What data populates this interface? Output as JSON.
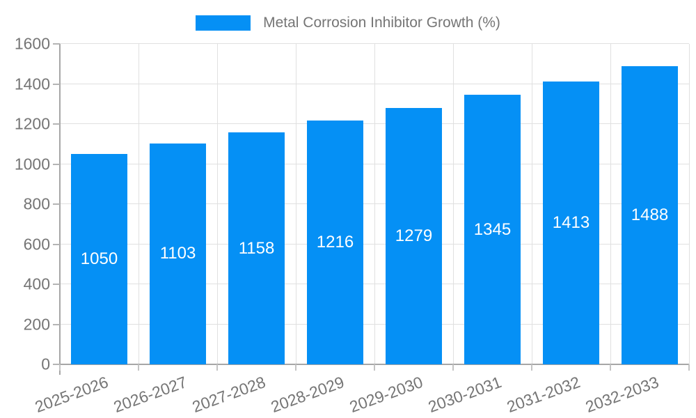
{
  "legend": {
    "label": "Metal Corrosion Inhibitor Growth (%)"
  },
  "chart_data": {
    "type": "bar",
    "title": "Metal Corrosion Inhibitor Growth (%)",
    "series_name": "Metal Corrosion Inhibitor Growth (%)",
    "categories": [
      "2025-2026",
      "2026-2027",
      "2027-2028",
      "2028-2029",
      "2029-2030",
      "2030-2031",
      "2031-2032",
      "2032-2033"
    ],
    "values": [
      1050,
      1103,
      1158,
      1216,
      1279,
      1345,
      1413,
      1488
    ],
    "xlabel": "",
    "ylabel": "",
    "ylim": [
      0,
      1600
    ],
    "ytick_step": 200,
    "yticks": [
      0,
      200,
      400,
      600,
      800,
      1000,
      1200,
      1400,
      1600
    ],
    "grid": true,
    "legend_position": "top-center",
    "value_labels": "inside-center",
    "x_label_rotation_deg": -20,
    "colors": {
      "bar": "#0590F5",
      "grid_line": "#E0E0E0",
      "axis_line": "#A6A6A6",
      "tick_label": "#757575",
      "legend_text": "#757575",
      "value_label": "#FFFFFF",
      "background": "#FFFFFF"
    }
  }
}
